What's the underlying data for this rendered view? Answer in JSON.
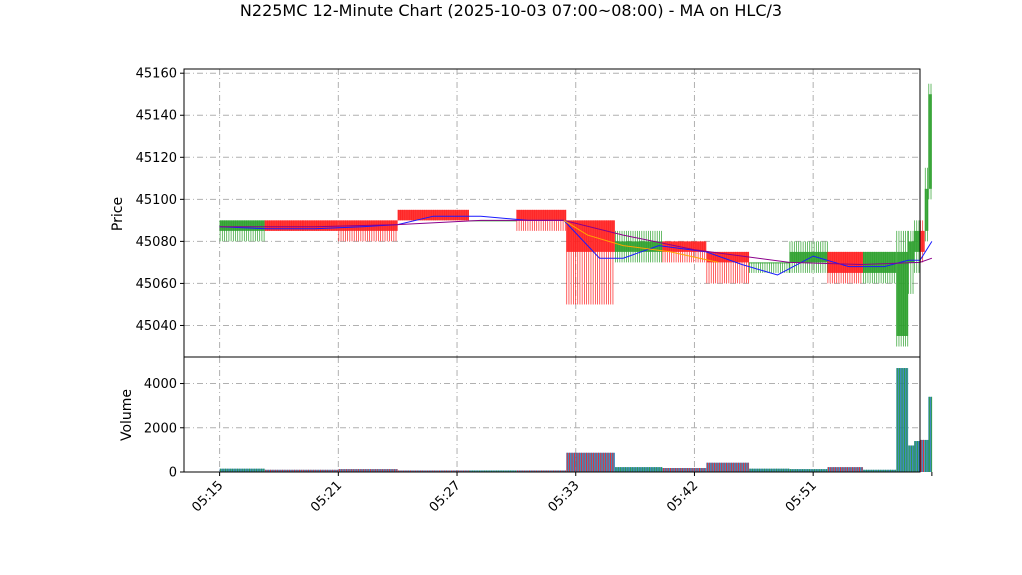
{
  "chart_data": {
    "type": "candlestick",
    "title": "N225MC 12-Minute Chart (2025-10-03 07:00~08:00) - MA on HLC/3",
    "colors": {
      "up": "#2ca02c",
      "down": "#ff2020",
      "ma_fast": "#1a1aff",
      "ma_slow": "#8b008b",
      "ma_mid": "#ffa500",
      "volume_fill": "#1f77b4",
      "grid": "#b0b0b0"
    },
    "price_panel": {
      "ylabel": "Price",
      "ylim": [
        45025,
        45162
      ],
      "yticks": [
        45040,
        45060,
        45080,
        45100,
        45120,
        45140,
        45160
      ],
      "grid": true
    },
    "volume_panel": {
      "ylabel": "Volume",
      "ylim": [
        0,
        5200
      ],
      "yticks": [
        0,
        2000,
        4000
      ],
      "grid": true
    },
    "xlim": [
      -1,
      61
    ],
    "xticks": [
      {
        "x": 2,
        "label": "05:15"
      },
      {
        "x": 12,
        "label": "05:21"
      },
      {
        "x": 22,
        "label": "05:27"
      },
      {
        "x": 32,
        "label": "05:33"
      },
      {
        "x": 42,
        "label": "05:42"
      },
      {
        "x": 52,
        "label": "05:51"
      },
      {
        "x": 62,
        "label": ""
      }
    ],
    "candles": [
      {
        "x_start": 2.0,
        "x_end": 5.8,
        "open": 45085,
        "close": 45090,
        "high": 45090,
        "low": 45080,
        "volume": 150
      },
      {
        "x_start": 5.8,
        "x_end": 9.0,
        "open": 45090,
        "close": 45085,
        "high": 45090,
        "low": 45085,
        "volume": 100
      },
      {
        "x_start": 9.0,
        "x_end": 12.0,
        "open": 45090,
        "close": 45085,
        "high": 45090,
        "low": 45085,
        "volume": 100
      },
      {
        "x_start": 12.0,
        "x_end": 17.0,
        "open": 45090,
        "close": 45085,
        "high": 45090,
        "low": 45080,
        "volume": 130
      },
      {
        "x_start": 17.0,
        "x_end": 23.0,
        "open": 45095,
        "close": 45090,
        "high": 45095,
        "low": 45090,
        "volume": 70
      },
      {
        "x_start": 23.0,
        "x_end": 27.0,
        "open": 45090,
        "close": 45090,
        "high": 45090,
        "low": 45090,
        "volume": 70
      },
      {
        "x_start": 27.0,
        "x_end": 31.2,
        "open": 45095,
        "close": 45090,
        "high": 45095,
        "low": 45085,
        "volume": 70
      },
      {
        "x_start": 31.2,
        "x_end": 35.3,
        "open": 45090,
        "close": 45075,
        "high": 45090,
        "low": 45050,
        "volume": 870
      },
      {
        "x_start": 35.3,
        "x_end": 39.3,
        "open": 45075,
        "close": 45080,
        "high": 45085,
        "low": 45070,
        "volume": 220
      },
      {
        "x_start": 39.3,
        "x_end": 43.0,
        "open": 45080,
        "close": 45075,
        "high": 45080,
        "low": 45070,
        "volume": 180
      },
      {
        "x_start": 43.0,
        "x_end": 46.6,
        "open": 45075,
        "close": 45070,
        "high": 45075,
        "low": 45060,
        "volume": 420
      },
      {
        "x_start": 46.6,
        "x_end": 50.0,
        "open": 45070,
        "close": 45070,
        "high": 45070,
        "low": 45065,
        "volume": 150
      },
      {
        "x_start": 50.0,
        "x_end": 53.2,
        "open": 45070,
        "close": 45075,
        "high": 45080,
        "low": 45065,
        "volume": 130
      },
      {
        "x_start": 53.2,
        "x_end": 56.2,
        "open": 45075,
        "close": 45065,
        "high": 45075,
        "low": 45060,
        "volume": 220
      },
      {
        "x_start": 56.2,
        "x_end": 59.0,
        "open": 45065,
        "close": 45075,
        "high": 45075,
        "low": 45060,
        "volume": 100
      },
      {
        "x_start": 59.0,
        "x_end": 60.0,
        "open": 45035,
        "close": 45075,
        "high": 45085,
        "low": 45030,
        "volume": 4700
      },
      {
        "x_start": 60.0,
        "x_end": 60.5,
        "open": 45070,
        "close": 45080,
        "high": 45085,
        "low": 45055,
        "volume": 1200
      },
      {
        "x_start": 60.5,
        "x_end": 61.0,
        "open": 45075,
        "close": 45085,
        "high": 45090,
        "low": 45065,
        "volume": 1400
      },
      {
        "x_start": 61.0,
        "x_end": 61.4,
        "open": 45085,
        "close": 45075,
        "high": 45090,
        "low": 45070,
        "volume": 1450
      },
      {
        "x_start": 61.4,
        "x_end": 61.7,
        "open": 45085,
        "close": 45105,
        "high": 45115,
        "low": 45080,
        "volume": 1450
      },
      {
        "x_start": 61.7,
        "x_end": 62.0,
        "open": 45105,
        "close": 45150,
        "high": 45155,
        "low": 45100,
        "volume": 3400
      }
    ],
    "series": [
      {
        "color": "#1a1aff",
        "x": [
          2,
          6,
          10,
          14,
          17,
          20,
          24,
          28,
          31,
          34,
          36,
          39,
          43,
          46,
          49,
          52,
          55,
          58,
          60,
          61,
          62
        ],
        "y": [
          45087,
          45086,
          45086,
          45087,
          45088,
          45092,
          45092,
          45090,
          45090,
          45072,
          45072,
          45078,
          45075,
          45069,
          45064,
          45073,
          45068,
          45068,
          45071,
          45071,
          45080
        ]
      },
      {
        "color": "#8b008b",
        "x": [
          2,
          10,
          17,
          24,
          31,
          36,
          42,
          50,
          56,
          61,
          62
        ],
        "y": [
          45087,
          45087,
          45088,
          45090,
          45090,
          45083,
          45076,
          45070,
          45069,
          45070,
          45072
        ]
      },
      {
        "color": "#ffa500",
        "x": [
          31,
          33,
          36,
          40,
          44
        ],
        "y": [
          45090,
          45083,
          45078,
          45075,
          45070
        ]
      }
    ]
  }
}
